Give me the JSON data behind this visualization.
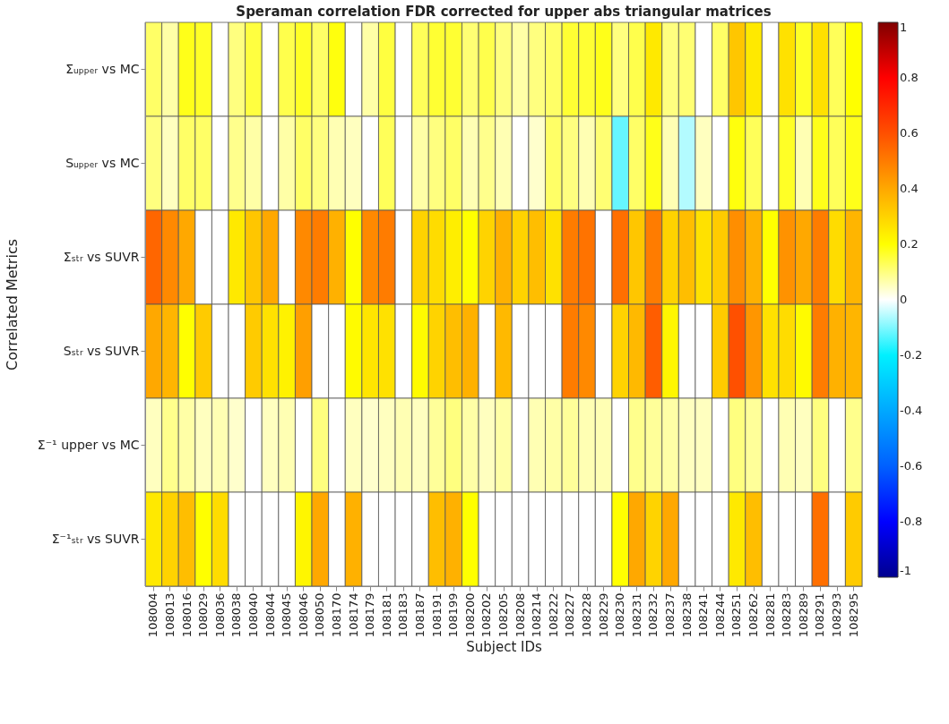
{
  "chart_data": {
    "type": "heatmap",
    "title": "Speraman correlation FDR corrected for upper abs triangular matrices",
    "xlabel": "Subject IDs",
    "ylabel": "Correlated Metrics",
    "categories": [
      "108004",
      "108013",
      "108016",
      "108029",
      "108036",
      "108038",
      "108040",
      "108044",
      "108045",
      "108046",
      "108050",
      "108170",
      "108174",
      "108179",
      "108181",
      "108183",
      "108187",
      "108191",
      "108199",
      "108200",
      "108202",
      "108205",
      "108208",
      "108214",
      "108222",
      "108227",
      "108228",
      "108229",
      "108230",
      "108231",
      "108232",
      "108237",
      "108238",
      "108241",
      "108244",
      "108251",
      "108262",
      "108281",
      "108283",
      "108289",
      "108291",
      "108293",
      "108295"
    ],
    "y_categories": [
      "Σᵤₚₚₑᵣ vs MC",
      "Sᵤₚₚₑᵣ vs MC",
      "Σₛₜᵣ vs SUVR",
      "Sₛₜᵣ vs SUVR",
      "Σ⁻¹ upper vs MC",
      "Σ⁻¹ₛₜᵣ vs SUVR"
    ],
    "cells": [
      [
        0.12,
        0.07,
        0.18,
        0.17,
        0,
        0.1,
        0.15,
        0,
        0.14,
        0.17,
        0.12,
        0.19,
        0,
        0.07,
        0.15,
        0,
        0.13,
        0.16,
        0.16,
        0.11,
        0.14,
        0.1,
        0.07,
        0.1,
        0.12,
        0.16,
        0.16,
        0.18,
        0.1,
        0.14,
        0.25,
        0.1,
        0.11,
        0,
        0.12,
        0.33,
        0.25,
        0,
        0.27,
        0.17,
        0.27,
        0.13,
        0.2
      ],
      [
        0.1,
        0.05,
        0.12,
        0.12,
        0,
        0.09,
        0.07,
        0,
        0.07,
        0.12,
        0.1,
        0.06,
        0.05,
        0,
        0.13,
        0,
        0.07,
        0.1,
        0.12,
        0.06,
        0.09,
        0.06,
        0,
        0.04,
        0.12,
        0.1,
        0.06,
        0.11,
        -0.12,
        0.12,
        0.18,
        0.06,
        -0.06,
        0.05,
        0,
        0.19,
        0.13,
        0,
        0.17,
        0.06,
        0.18,
        0.13,
        0.18
      ],
      [
        0.55,
        0.47,
        0.4,
        0,
        0,
        0.25,
        0.33,
        0.4,
        0,
        0.47,
        0.5,
        0.38,
        0.2,
        0.47,
        0.5,
        0,
        0.3,
        0.28,
        0.24,
        0.2,
        0.3,
        0.38,
        0.3,
        0.35,
        0.27,
        0.5,
        0.52,
        0,
        0.53,
        0.33,
        0.5,
        0.3,
        0.35,
        0.27,
        0.32,
        0.46,
        0.38,
        0.2,
        0.45,
        0.4,
        0.5,
        0.28,
        0.37
      ],
      [
        0.4,
        0.37,
        0.2,
        0.32,
        0,
        0,
        0.32,
        0.27,
        0.23,
        0.42,
        0,
        0,
        0.21,
        0.26,
        0.27,
        0,
        0.21,
        0.3,
        0.35,
        0.38,
        0,
        0.36,
        0,
        0,
        0,
        0.5,
        0.47,
        0,
        0.3,
        0.36,
        0.57,
        0.22,
        0,
        0,
        0.32,
        0.6,
        0.44,
        0.27,
        0.28,
        0.21,
        0.5,
        0.38,
        0.37
      ],
      [
        0.05,
        0.09,
        0.07,
        0.05,
        0.06,
        0.04,
        0,
        0.05,
        0.06,
        0,
        0.1,
        0,
        0.05,
        0.04,
        0.05,
        0.06,
        0.05,
        0.08,
        0.1,
        0.07,
        0.05,
        0.07,
        0,
        0.06,
        0.07,
        0.08,
        0.06,
        0.06,
        0,
        0.09,
        0.08,
        0.07,
        0.05,
        0.05,
        0,
        0.1,
        0.08,
        0,
        0.06,
        0.05,
        0.1,
        0,
        0.09
      ],
      [
        0.25,
        0.3,
        0.35,
        0.2,
        0.28,
        0,
        0,
        0,
        0,
        0.22,
        0.4,
        0,
        0.38,
        0,
        0,
        0,
        0,
        0.35,
        0.38,
        0.2,
        0,
        0,
        0,
        0,
        0,
        0,
        0,
        0,
        0.2,
        0.4,
        0.3,
        0.4,
        0,
        0,
        0,
        0.25,
        0.35,
        0,
        0,
        0,
        0.53,
        0,
        0.32
      ]
    ],
    "clim": [
      -1,
      1
    ],
    "cticks": [
      -1,
      -0.8,
      -0.6,
      -0.4,
      -0.2,
      0,
      0.2,
      0.4,
      0.6,
      0.8,
      1
    ]
  }
}
